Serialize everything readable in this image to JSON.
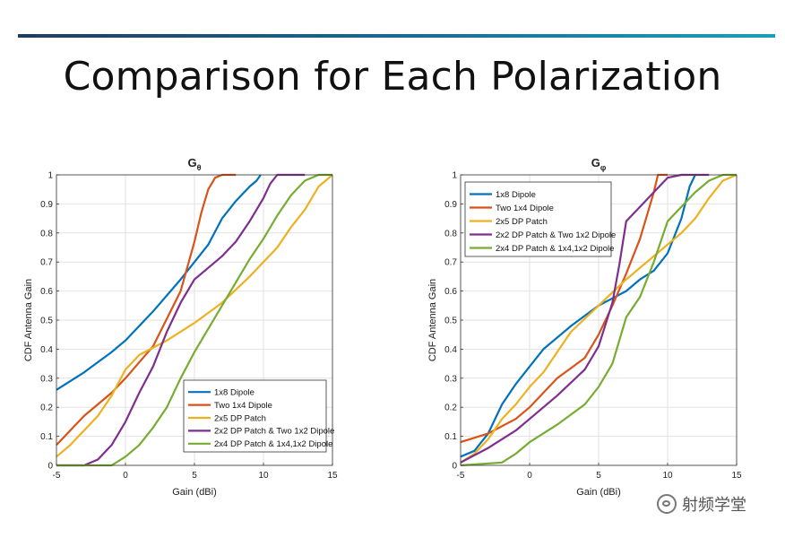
{
  "slide": {
    "title": "Comparison for Each Polarization",
    "watermark": "射频学堂",
    "accent": "#1f5f8b"
  },
  "chart_data": [
    {
      "type": "line",
      "title": "G_θ",
      "title_main": "G",
      "title_sub": "θ",
      "xlabel": "Gain (dBi)",
      "ylabel": "CDF Antenna Gain",
      "xlim": [
        -5,
        15
      ],
      "ylim": [
        0,
        1
      ],
      "xticks": [
        -5,
        0,
        5,
        10,
        15
      ],
      "yticks": [
        0,
        0.1,
        0.2,
        0.3,
        0.4,
        0.5,
        0.6,
        0.7,
        0.8,
        0.9,
        1
      ],
      "grid": true,
      "legend_position": "bottom-right",
      "series": [
        {
          "name": "1x8 Dipole",
          "color": "#0072bd",
          "x": [
            -5,
            -3,
            -1,
            0,
            2,
            4,
            6,
            7,
            8,
            9,
            9.5,
            9.8
          ],
          "y": [
            0.26,
            0.32,
            0.39,
            0.43,
            0.53,
            0.64,
            0.76,
            0.85,
            0.91,
            0.96,
            0.98,
            1.0
          ]
        },
        {
          "name": "Two 1x4 Dipole",
          "color": "#d95319",
          "x": [
            -5,
            -3,
            -1,
            0,
            2,
            4,
            5,
            5.5,
            6,
            6.5,
            7,
            8
          ],
          "y": [
            0.07,
            0.17,
            0.25,
            0.3,
            0.41,
            0.6,
            0.77,
            0.87,
            0.95,
            0.99,
            1.0,
            1.0
          ]
        },
        {
          "name": "2x5 DP Patch",
          "color": "#edb120",
          "x": [
            -5,
            -4,
            -3,
            -2,
            -1,
            0,
            1,
            3,
            5,
            7,
            9,
            11,
            12,
            13,
            14,
            15
          ],
          "y": [
            0.03,
            0.07,
            0.12,
            0.17,
            0.24,
            0.33,
            0.38,
            0.43,
            0.49,
            0.56,
            0.65,
            0.75,
            0.82,
            0.88,
            0.96,
            1.0
          ]
        },
        {
          "name": "2x2 DP Patch & Two 1x2 Dipole",
          "color": "#7e2f8e",
          "x": [
            -5,
            -3,
            -2,
            -1,
            0,
            1,
            2,
            3,
            4,
            5,
            6,
            7,
            8,
            9,
            10,
            10.5,
            11,
            12,
            13
          ],
          "y": [
            0,
            0,
            0.02,
            0.07,
            0.15,
            0.25,
            0.34,
            0.46,
            0.56,
            0.64,
            0.68,
            0.72,
            0.77,
            0.84,
            0.92,
            0.97,
            1.0,
            1.0,
            1.0
          ]
        },
        {
          "name": "2x4 DP Patch & 1x4,1x2 Dipole",
          "color": "#77ac30",
          "x": [
            -5,
            -1,
            0,
            1,
            2,
            3,
            4,
            5,
            6,
            7,
            8,
            9,
            10,
            11,
            12,
            13,
            14,
            15
          ],
          "y": [
            0,
            0,
            0.03,
            0.07,
            0.13,
            0.2,
            0.3,
            0.39,
            0.47,
            0.55,
            0.63,
            0.71,
            0.78,
            0.86,
            0.93,
            0.98,
            1.0,
            1.0
          ]
        }
      ]
    },
    {
      "type": "line",
      "title": "G_φ",
      "title_main": "G",
      "title_sub": "φ",
      "xlabel": "Gain (dBi)",
      "ylabel": "CDF Antenna Gain",
      "xlim": [
        -5,
        15
      ],
      "ylim": [
        0,
        1
      ],
      "xticks": [
        -5,
        0,
        5,
        10,
        15
      ],
      "yticks": [
        0,
        0.1,
        0.2,
        0.3,
        0.4,
        0.5,
        0.6,
        0.7,
        0.8,
        0.9,
        1
      ],
      "grid": true,
      "legend_position": "top-left",
      "series": [
        {
          "name": "1x8 Dipole",
          "color": "#0072bd",
          "x": [
            -5,
            -4,
            -3,
            -2,
            -1,
            0,
            1,
            3,
            5,
            7,
            8,
            9,
            10,
            11,
            11.6,
            12
          ],
          "y": [
            0.03,
            0.05,
            0.11,
            0.21,
            0.28,
            0.34,
            0.4,
            0.48,
            0.55,
            0.6,
            0.64,
            0.67,
            0.73,
            0.85,
            0.96,
            1.0
          ]
        },
        {
          "name": "Two 1x4 Dipole",
          "color": "#d95319",
          "x": [
            -5,
            -3,
            -1,
            0,
            2,
            4,
            5,
            6,
            7,
            7.5,
            8,
            8.5,
            9,
            9.3,
            9.5,
            10
          ],
          "y": [
            0.08,
            0.11,
            0.16,
            0.2,
            0.3,
            0.37,
            0.45,
            0.55,
            0.66,
            0.72,
            0.78,
            0.86,
            0.94,
            1.0,
            1.0,
            1.0
          ]
        },
        {
          "name": "2x5 DP Patch",
          "color": "#edb120",
          "x": [
            -5,
            -4,
            -3,
            -2,
            -1,
            0,
            1,
            3,
            5,
            7,
            9,
            11,
            12,
            13,
            14,
            15
          ],
          "y": [
            0.01,
            0.04,
            0.09,
            0.16,
            0.21,
            0.27,
            0.32,
            0.46,
            0.55,
            0.64,
            0.72,
            0.8,
            0.85,
            0.92,
            0.98,
            1.0
          ]
        },
        {
          "name": "2x2 DP Patch & Two 1x2 Dipole",
          "color": "#7e2f8e",
          "x": [
            -5,
            -3,
            -1,
            0,
            2,
            4,
            5,
            6,
            6.5,
            7,
            8,
            9,
            10,
            11,
            12,
            13
          ],
          "y": [
            0.01,
            0.06,
            0.12,
            0.16,
            0.24,
            0.33,
            0.41,
            0.56,
            0.69,
            0.84,
            0.89,
            0.94,
            0.99,
            1.0,
            1.0,
            1.0
          ]
        },
        {
          "name": "2x4 DP Patch & 1x4,1x2 Dipole",
          "color": "#77ac30",
          "x": [
            -5,
            -2,
            -1,
            0,
            2,
            4,
            5,
            6,
            7,
            8,
            9,
            10,
            11,
            12,
            13,
            14,
            15
          ],
          "y": [
            0,
            0.01,
            0.04,
            0.08,
            0.14,
            0.21,
            0.27,
            0.35,
            0.51,
            0.58,
            0.7,
            0.84,
            0.89,
            0.94,
            0.98,
            1.0,
            1.0
          ]
        }
      ]
    }
  ]
}
